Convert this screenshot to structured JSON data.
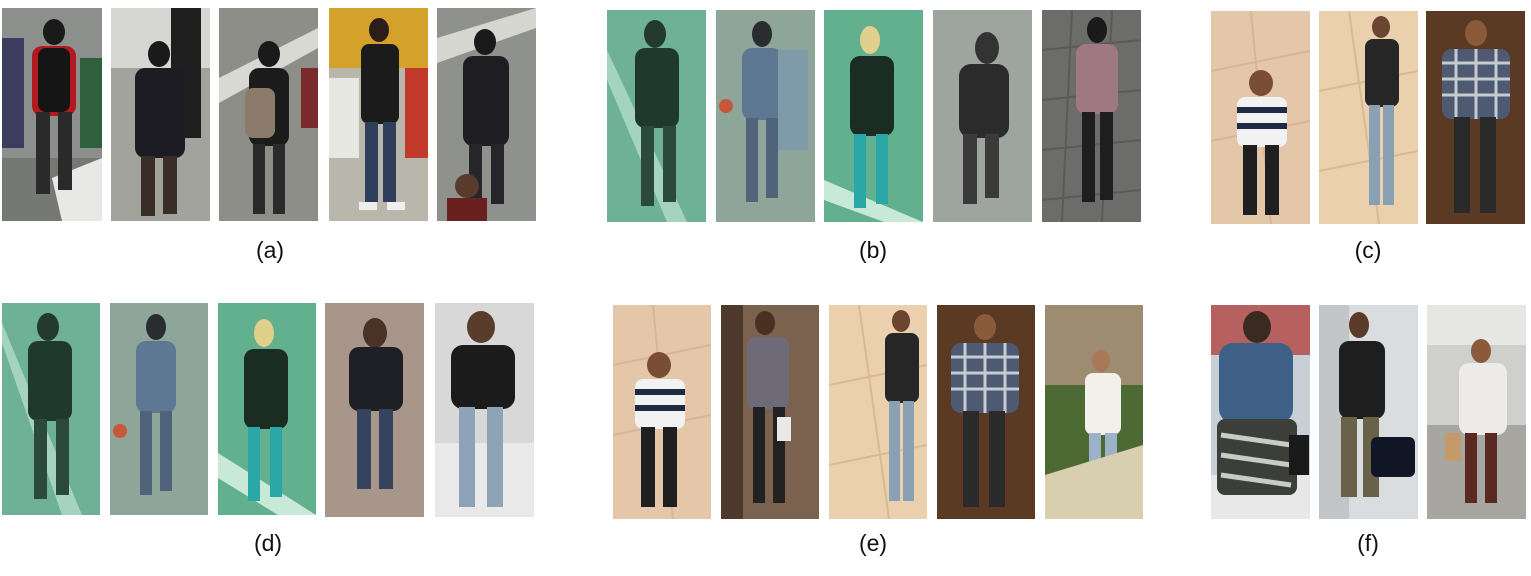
{
  "panels": [
    {
      "label": "(a)",
      "scene": "campus"
    },
    {
      "label": "(b)",
      "scene": "greenish"
    },
    {
      "label": "(c)",
      "scene": "sand"
    },
    {
      "label": "(d)",
      "scene": "mixed"
    },
    {
      "label": "(e)",
      "scene": "sand"
    },
    {
      "label": "(f)",
      "scene": "street"
    }
  ]
}
